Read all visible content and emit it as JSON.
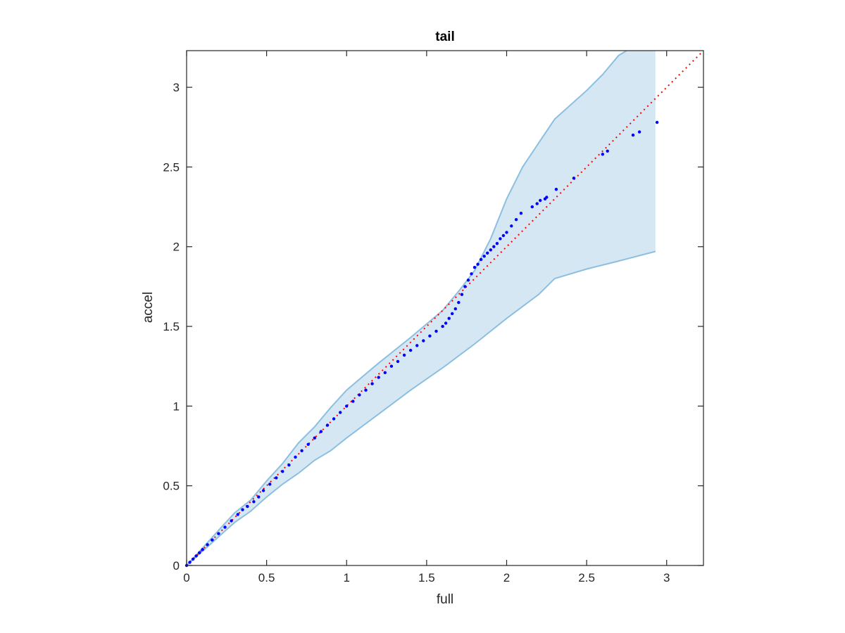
{
  "chart_data": {
    "type": "scatter",
    "title": "tail",
    "xlabel": "full",
    "ylabel": "accel",
    "xlim": [
      0,
      3.23
    ],
    "ylim": [
      0,
      3.23
    ],
    "xticks": [
      0,
      0.5,
      1,
      1.5,
      2,
      2.5,
      3
    ],
    "yticks": [
      0,
      0.5,
      1,
      1.5,
      2,
      2.5,
      3
    ],
    "xtick_labels": [
      "0",
      "0.5",
      "1",
      "1.5",
      "2",
      "2.5",
      "3"
    ],
    "ytick_labels": [
      "0",
      "0.5",
      "1",
      "1.5",
      "2",
      "2.5",
      "3"
    ],
    "grid": false,
    "box": true,
    "colors": {
      "band_fill": "#d6e7f4",
      "band_edge": "#8bbfe0",
      "points": "#0000ff",
      "reference": "#ff0000",
      "axes": "#262626"
    },
    "reference_line": {
      "style": "dotted",
      "from": [
        0,
        0
      ],
      "to": [
        3.23,
        3.23
      ]
    },
    "band": {
      "upper": [
        [
          0,
          0
        ],
        [
          0.1,
          0.11
        ],
        [
          0.2,
          0.22
        ],
        [
          0.3,
          0.33
        ],
        [
          0.4,
          0.41
        ],
        [
          0.5,
          0.53
        ],
        [
          0.6,
          0.64
        ],
        [
          0.7,
          0.77
        ],
        [
          0.8,
          0.87
        ],
        [
          0.9,
          0.99
        ],
        [
          1.0,
          1.1
        ],
        [
          1.2,
          1.27
        ],
        [
          1.4,
          1.43
        ],
        [
          1.6,
          1.6
        ],
        [
          1.7,
          1.72
        ],
        [
          1.8,
          1.85
        ],
        [
          1.9,
          2.05
        ],
        [
          2.0,
          2.3
        ],
        [
          2.1,
          2.5
        ],
        [
          2.2,
          2.65
        ],
        [
          2.3,
          2.8
        ],
        [
          2.5,
          2.98
        ],
        [
          2.6,
          3.08
        ],
        [
          2.7,
          3.2
        ],
        [
          2.75,
          3.23
        ]
      ],
      "lower": [
        [
          0,
          0
        ],
        [
          0.1,
          0.09
        ],
        [
          0.2,
          0.18
        ],
        [
          0.3,
          0.27
        ],
        [
          0.4,
          0.34
        ],
        [
          0.5,
          0.43
        ],
        [
          0.6,
          0.51
        ],
        [
          0.7,
          0.58
        ],
        [
          0.8,
          0.66
        ],
        [
          0.9,
          0.72
        ],
        [
          1.0,
          0.8
        ],
        [
          1.2,
          0.95
        ],
        [
          1.4,
          1.1
        ],
        [
          1.6,
          1.24
        ],
        [
          1.8,
          1.39
        ],
        [
          2.0,
          1.55
        ],
        [
          2.2,
          1.7
        ],
        [
          2.3,
          1.8
        ],
        [
          2.5,
          1.86
        ],
        [
          2.7,
          1.91
        ],
        [
          2.93,
          1.97
        ]
      ],
      "right_edge_x": 2.93
    },
    "points": {
      "x": [
        0,
        0.02,
        0.04,
        0.06,
        0.08,
        0.1,
        0.13,
        0.16,
        0.2,
        0.24,
        0.28,
        0.32,
        0.35,
        0.38,
        0.42,
        0.45,
        0.48,
        0.52,
        0.56,
        0.6,
        0.64,
        0.68,
        0.72,
        0.76,
        0.8,
        0.84,
        0.88,
        0.92,
        0.96,
        1.0,
        1.04,
        1.08,
        1.12,
        1.16,
        1.2,
        1.24,
        1.28,
        1.32,
        1.36,
        1.4,
        1.44,
        1.48,
        1.52,
        1.56,
        1.6,
        1.62,
        1.64,
        1.66,
        1.68,
        1.7,
        1.72,
        1.74,
        1.76,
        1.78,
        1.8,
        1.82,
        1.84,
        1.86,
        1.88,
        1.9,
        1.92,
        1.94,
        1.96,
        1.98,
        2.0,
        2.03,
        2.06,
        2.09,
        2.16,
        2.19,
        2.21,
        2.24,
        2.25,
        2.31,
        2.42,
        2.6,
        2.63,
        2.79,
        2.83,
        2.94
      ],
      "y": [
        0,
        0.02,
        0.04,
        0.06,
        0.08,
        0.1,
        0.13,
        0.16,
        0.2,
        0.24,
        0.28,
        0.32,
        0.35,
        0.37,
        0.4,
        0.43,
        0.47,
        0.51,
        0.55,
        0.59,
        0.63,
        0.68,
        0.72,
        0.76,
        0.8,
        0.84,
        0.88,
        0.92,
        0.96,
        1.0,
        1.03,
        1.07,
        1.1,
        1.14,
        1.18,
        1.21,
        1.25,
        1.28,
        1.32,
        1.35,
        1.38,
        1.41,
        1.44,
        1.47,
        1.5,
        1.52,
        1.55,
        1.58,
        1.61,
        1.65,
        1.7,
        1.75,
        1.79,
        1.83,
        1.87,
        1.89,
        1.92,
        1.94,
        1.96,
        1.98,
        2.0,
        2.02,
        2.05,
        2.07,
        2.09,
        2.13,
        2.17,
        2.21,
        2.25,
        2.27,
        2.29,
        2.3,
        2.31,
        2.36,
        2.43,
        2.58,
        2.6,
        2.7,
        2.72,
        2.78
      ]
    }
  }
}
